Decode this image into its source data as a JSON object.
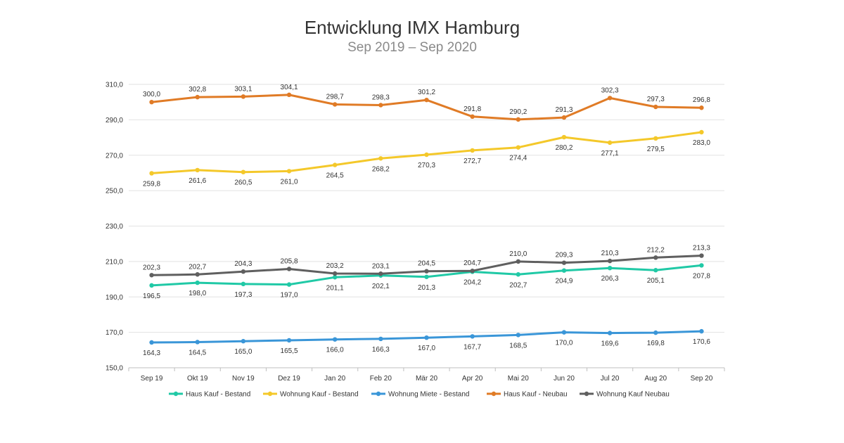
{
  "chart_data": {
    "type": "line",
    "title": "Entwicklung IMX Hamburg",
    "subtitle": "Sep 2019 – Sep 2020",
    "categories": [
      "Sep 19",
      "Okt 19",
      "Nov 19",
      "Dez 19",
      "Jan 20",
      "Feb 20",
      "Mär 20",
      "Apr 20",
      "Mai 20",
      "Jun 20",
      "Jul 20",
      "Aug 20",
      "Sep 20"
    ],
    "ylim": [
      150,
      310
    ],
    "yticks": [
      "150,0",
      "170,0",
      "190,0",
      "210,0",
      "230,0",
      "250,0",
      "270,0",
      "290,0",
      "310,0"
    ],
    "grid": true,
    "legend_position": "bottom",
    "series": [
      {
        "name": "Haus Kauf - Bestand",
        "color": "#20c9a6",
        "label_position": "below",
        "values": [
          196.5,
          198.0,
          197.3,
          197.0,
          201.1,
          202.1,
          201.3,
          204.2,
          202.7,
          204.9,
          206.3,
          205.1,
          207.8
        ],
        "labels": [
          "196,5",
          "198,0",
          "197,3",
          "197,0",
          "201,1",
          "202,1",
          "201,3",
          "204,2",
          "202,7",
          "204,9",
          "206,3",
          "205,1",
          "207,8"
        ]
      },
      {
        "name": "Wohnung Kauf - Bestand",
        "color": "#f4c82a",
        "label_position": "below",
        "values": [
          259.8,
          261.6,
          260.5,
          261.0,
          264.5,
          268.2,
          270.3,
          272.7,
          274.4,
          280.2,
          277.1,
          279.5,
          283.0
        ],
        "labels": [
          "259,8",
          "261,6",
          "260,5",
          "261,0",
          "264,5",
          "268,2",
          "270,3",
          "272,7",
          "274,4",
          "280,2",
          "277,1",
          "279,5",
          "283,0"
        ]
      },
      {
        "name": "Wohnung Miete - Bestand",
        "color": "#3a96d8",
        "label_position": "below",
        "values": [
          164.3,
          164.5,
          165.0,
          165.5,
          166.0,
          166.3,
          167.0,
          167.7,
          168.5,
          170.0,
          169.6,
          169.8,
          170.6
        ],
        "labels": [
          "164,3",
          "164,5",
          "165,0",
          "165,5",
          "166,0",
          "166,3",
          "167,0",
          "167,7",
          "168,5",
          "170,0",
          "169,6",
          "169,8",
          "170,6"
        ]
      },
      {
        "name": "Haus Kauf - Neubau",
        "color": "#e07b26",
        "label_position": "above",
        "values": [
          300.0,
          302.8,
          303.1,
          304.1,
          298.7,
          298.3,
          301.2,
          291.8,
          290.2,
          291.3,
          302.3,
          297.3,
          296.8
        ],
        "labels": [
          "300,0",
          "302,8",
          "303,1",
          "304,1",
          "298,7",
          "298,3",
          "301,2",
          "291,8",
          "290,2",
          "291,3",
          "302,3",
          "297,3",
          "296,8"
        ]
      },
      {
        "name": "Wohnung Kauf Neubau",
        "color": "#5f5f5f",
        "label_position": "above",
        "values": [
          202.3,
          202.7,
          204.3,
          205.8,
          203.2,
          203.1,
          204.5,
          204.7,
          210.0,
          209.3,
          210.3,
          212.2,
          213.3
        ],
        "labels": [
          "202,3",
          "202,7",
          "204,3",
          "205,8",
          "203,2",
          "203,1",
          "204,5",
          "204,7",
          "210,0",
          "209,3",
          "210,3",
          "212,2",
          "213,3"
        ]
      }
    ]
  }
}
